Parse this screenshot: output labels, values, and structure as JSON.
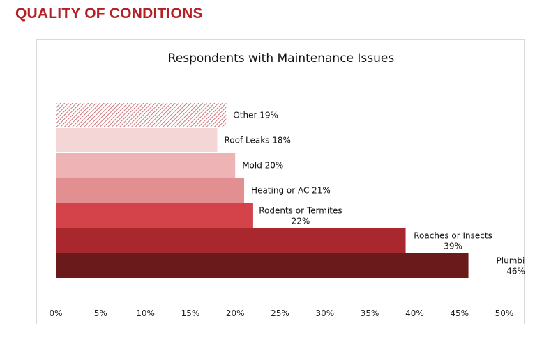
{
  "page": {
    "heading": "QUALITY OF CONDITIONS"
  },
  "chart_data": {
    "type": "bar",
    "orientation": "horizontal",
    "title": "Respondents with Maintenance Issues",
    "xlabel": "",
    "ylabel": "",
    "xlim": [
      0,
      50
    ],
    "x_ticks": [
      "0%",
      "5%",
      "10%",
      "15%",
      "20%",
      "25%",
      "30%",
      "35%",
      "40%",
      "45%",
      "50%"
    ],
    "grid": false,
    "legend": "none",
    "categories": [
      "Other",
      "Roof Leaks",
      "Mold",
      "Heating or AC",
      "Rodents or Termites",
      "Roaches or Insects",
      "Plumbing"
    ],
    "values": [
      19,
      18,
      20,
      21,
      22,
      39,
      46
    ],
    "labels": [
      [
        "Other 19%"
      ],
      [
        "Roof Leaks 18%"
      ],
      [
        "Mold 20%"
      ],
      [
        "Heating or AC 21%"
      ],
      [
        "Rodents or Termites",
        "22%"
      ],
      [
        "Roaches or Insects",
        "39%"
      ],
      [
        "Plumbing",
        "46%"
      ]
    ],
    "colors": [
      "#d9a0a3",
      "#f5d6d7",
      "#eeb3b5",
      "#e28f92",
      "#d4434a",
      "#a8282d",
      "#6b1a1c"
    ],
    "patterns": [
      "hatched",
      "solid",
      "solid",
      "solid",
      "solid",
      "solid",
      "solid"
    ]
  }
}
